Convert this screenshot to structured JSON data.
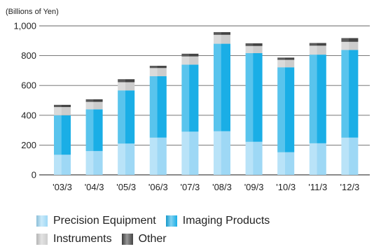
{
  "chart_data": {
    "type": "bar",
    "stacked": true,
    "unit_label": "(Billions of Yen)",
    "categories": [
      "'03/3",
      "'04/3",
      "'05/3",
      "'06/3",
      "'07/3",
      "'08/3",
      "'09/3",
      "'10/3",
      "'11/3",
      "'12/3"
    ],
    "series": [
      {
        "name": "Precision Equipment",
        "color": "#9ed8f5",
        "values": [
          135,
          160,
          210,
          250,
          290,
          293,
          222,
          152,
          212,
          250
        ]
      },
      {
        "name": "Imaging Products",
        "color": "#1aaee6",
        "values": [
          265,
          280,
          357,
          412,
          450,
          587,
          595,
          570,
          595,
          588
        ]
      },
      {
        "name": "Instruments",
        "color": "#cccccc",
        "values": [
          55,
          50,
          55,
          55,
          55,
          60,
          48,
          50,
          60,
          55
        ]
      },
      {
        "name": "Other",
        "color": "#444444",
        "values": [
          15,
          17,
          20,
          15,
          18,
          18,
          18,
          15,
          18,
          25
        ]
      }
    ],
    "yticks": [
      "0",
      "200",
      "400",
      "600",
      "800",
      "1,000"
    ],
    "ylim": [
      0,
      1000
    ],
    "grid": true,
    "legend_position": "bottom"
  }
}
